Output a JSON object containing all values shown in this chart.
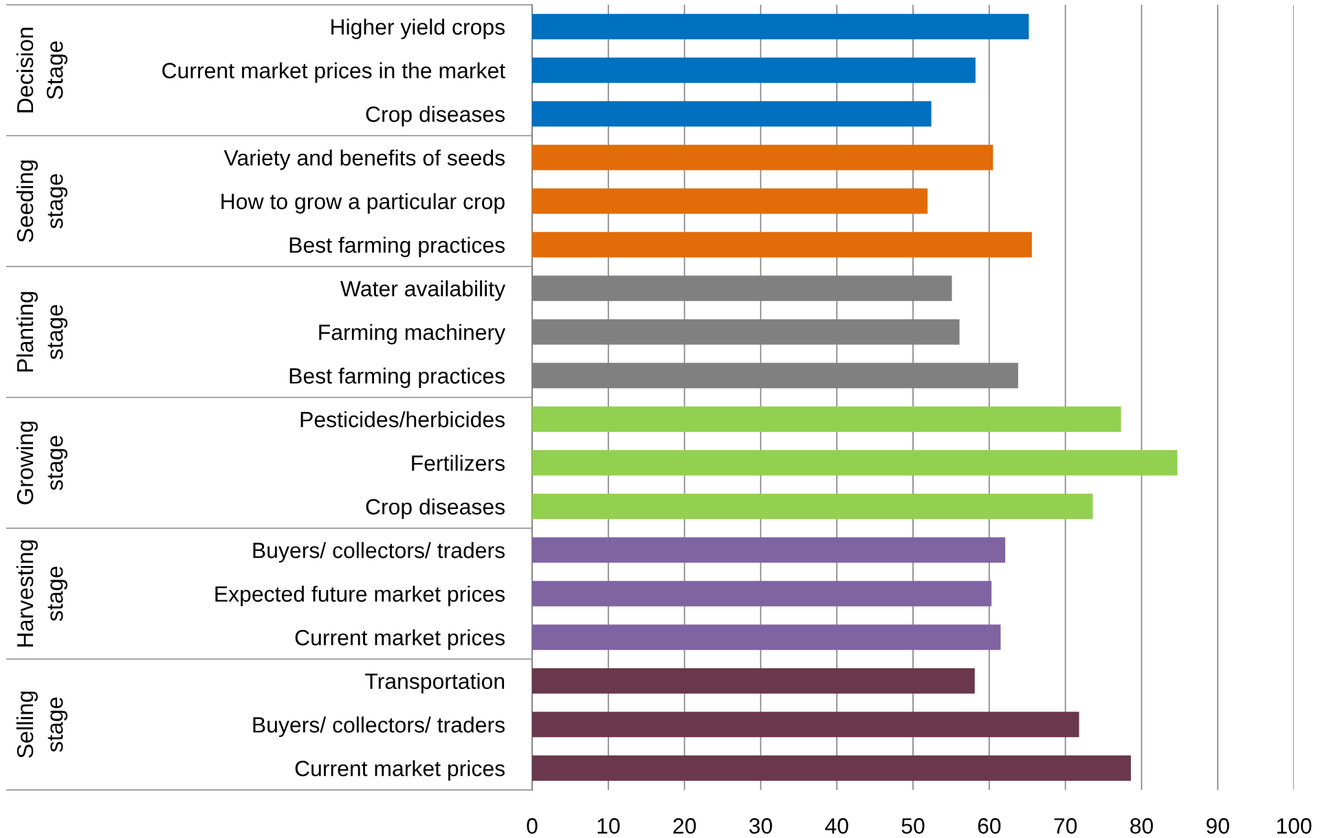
{
  "chart_data": {
    "type": "bar",
    "orientation": "horizontal",
    "categories": [
      "Higher yield crops",
      "Current market prices in the market",
      "Crop diseases",
      "Variety and benefits of seeds",
      "How to grow a particular crop",
      "Best farming practices",
      "Water availability",
      "Farming machinery",
      "Best farming practices",
      "Pesticides/herbicides",
      "Fertilizers",
      "Crop diseases",
      "Buyers/ collectors/ traders",
      "Expected future market prices",
      "Current market prices",
      "Transportation",
      "Buyers/ collectors/ traders",
      "Current market prices"
    ],
    "values": [
      65.2,
      58.2,
      52.4,
      60.5,
      51.9,
      65.6,
      55.1,
      56.1,
      63.8,
      77.3,
      84.7,
      73.6,
      62.1,
      60.3,
      61.5,
      58.1,
      71.8,
      78.6
    ],
    "colors": [
      "#0070c0",
      "#0070c0",
      "#0070c0",
      "#e36c0a",
      "#e36c0a",
      "#e36c0a",
      "#808080",
      "#808080",
      "#808080",
      "#92d050",
      "#92d050",
      "#92d050",
      "#8064a2",
      "#8064a2",
      "#8064a2",
      "#6a374c",
      "#6a374c",
      "#6a374c"
    ],
    "annotations": [
      "Decision Stage",
      "Seeding stage",
      "Planting stage",
      "Growing stage",
      "Harvesting stage",
      "Selling stage"
    ],
    "xlim": [
      0,
      100
    ],
    "xticks": [
      0,
      10,
      20,
      30,
      40,
      50,
      60,
      70,
      80,
      90,
      100
    ],
    "grid": "x"
  }
}
